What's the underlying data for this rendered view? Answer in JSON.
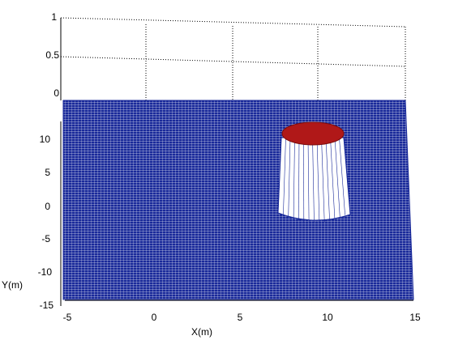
{
  "chart_data": {
    "type": "surface",
    "title": "",
    "xlabel": "X(m)",
    "ylabel": "Y(m)",
    "zlabel": "",
    "xlim": [
      -5,
      15
    ],
    "ylim": [
      -15,
      15
    ],
    "zlim": [
      0,
      1
    ],
    "x_ticks": [
      "-5",
      "0",
      "5",
      "10",
      "15"
    ],
    "y_ticks": [
      "-15",
      "-10",
      "-5",
      "0",
      "5",
      "10"
    ],
    "z_ticks": [
      "0",
      "0.5",
      "1"
    ],
    "grid": true,
    "surface": {
      "base_level": 0,
      "base_color": "#1a2a9a",
      "mesh_color": "#ffffff",
      "cylinder": {
        "center_x": 9.5,
        "center_y": 10,
        "radius": 2,
        "height": 1,
        "side_color": "#ffffff",
        "top_color": "#b01818"
      }
    }
  }
}
